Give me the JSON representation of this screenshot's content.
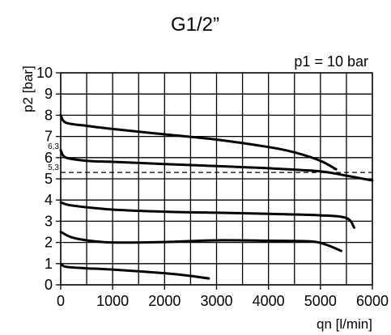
{
  "chart_data": {
    "type": "line",
    "title": "G1/2”",
    "annotation": "p1 = 10 bar",
    "xlabel": "qn [l/min]",
    "ylabel": "p2 [bar]",
    "xlim": [
      0,
      6000
    ],
    "ylim": [
      0,
      10
    ],
    "x_ticks": [
      0,
      1000,
      2000,
      3000,
      4000,
      5000,
      6000
    ],
    "y_ticks": [
      0,
      1,
      2,
      3,
      4,
      5,
      6,
      7,
      8,
      9,
      10
    ],
    "grid": true,
    "reference_lines": [
      {
        "label": "6,3",
        "y": 6.3,
        "style": "none"
      },
      {
        "label": "5,3",
        "y": 5.3,
        "style": "dashed"
      }
    ],
    "series": [
      {
        "points": [
          [
            0,
            8.0
          ],
          [
            100,
            7.65
          ],
          [
            500,
            7.5
          ],
          [
            1000,
            7.35
          ],
          [
            2000,
            7.1
          ],
          [
            3000,
            6.85
          ],
          [
            4000,
            6.5
          ],
          [
            4500,
            6.25
          ],
          [
            5000,
            5.85
          ],
          [
            5300,
            5.45
          ]
        ]
      },
      {
        "points": [
          [
            0,
            6.35
          ],
          [
            100,
            6.0
          ],
          [
            500,
            5.85
          ],
          [
            1000,
            5.8
          ],
          [
            2000,
            5.7
          ],
          [
            3000,
            5.6
          ],
          [
            4000,
            5.5
          ],
          [
            5000,
            5.35
          ],
          [
            5500,
            5.15
          ],
          [
            6000,
            4.92
          ]
        ]
      },
      {
        "points": [
          [
            0,
            3.9
          ],
          [
            200,
            3.75
          ],
          [
            1000,
            3.55
          ],
          [
            2000,
            3.45
          ],
          [
            3000,
            3.4
          ],
          [
            4000,
            3.35
          ],
          [
            5000,
            3.28
          ],
          [
            5500,
            3.15
          ],
          [
            5650,
            2.7
          ]
        ]
      },
      {
        "points": [
          [
            0,
            2.5
          ],
          [
            200,
            2.25
          ],
          [
            500,
            2.1
          ],
          [
            1000,
            2.0
          ],
          [
            2000,
            2.02
          ],
          [
            3000,
            2.1
          ],
          [
            4000,
            2.08
          ],
          [
            4800,
            2.05
          ],
          [
            5100,
            1.9
          ],
          [
            5400,
            1.6
          ]
        ]
      },
      {
        "points": [
          [
            0,
            1.0
          ],
          [
            100,
            0.85
          ],
          [
            500,
            0.78
          ],
          [
            1000,
            0.72
          ],
          [
            2000,
            0.55
          ],
          [
            2500,
            0.42
          ],
          [
            2850,
            0.3
          ]
        ]
      }
    ]
  }
}
